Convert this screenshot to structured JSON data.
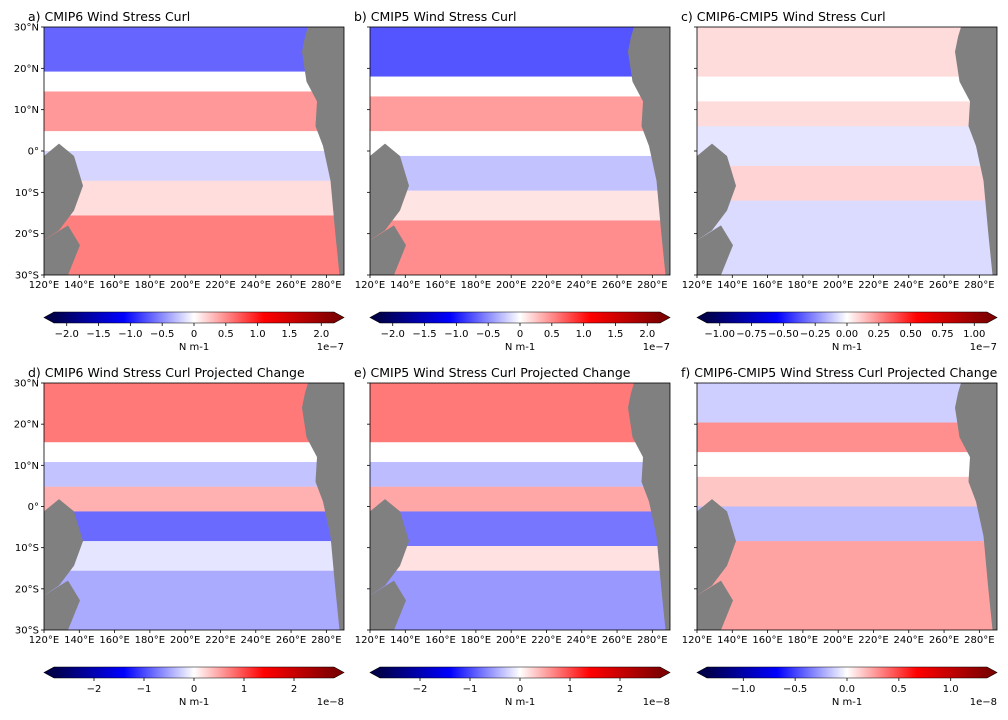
{
  "chart_data": [
    {
      "type": "heatmap",
      "title": "a) CMIP6 Wind Stress Curl",
      "x_ticks": [
        "120°E",
        "140°E",
        "160°E",
        "180°E",
        "200°E",
        "220°E",
        "240°E",
        "260°E",
        "280°E"
      ],
      "y_ticks": [
        "30°N",
        "20°N",
        "10°N",
        "0°",
        "10°S",
        "20°S",
        "30°S"
      ],
      "colorbar": {
        "ticks": [
          "−2.0",
          "−1.5",
          "−1.0",
          "−0.5",
          "0",
          "0.5",
          "1.0",
          "1.5",
          "2.0"
        ],
        "tick_values": [
          -2,
          -1.5,
          -1,
          -0.5,
          0,
          0.5,
          1,
          1.5,
          2
        ],
        "vmin": -2.2,
        "vmax": 2.2,
        "label": "N m-1",
        "scale": "1e−7"
      }
    },
    {
      "type": "heatmap",
      "title": "b) CMIP5 Wind Stress Curl",
      "x_ticks": [
        "120°E",
        "140°E",
        "160°E",
        "180°E",
        "200°E",
        "220°E",
        "240°E",
        "260°E",
        "280°E"
      ],
      "y_ticks": [],
      "colorbar": {
        "ticks": [
          "−2.0",
          "−1.5",
          "−1.0",
          "−0.5",
          "0",
          "0.5",
          "1.0",
          "1.5",
          "2.0"
        ],
        "tick_values": [
          -2,
          -1.5,
          -1,
          -0.5,
          0,
          0.5,
          1,
          1.5,
          2
        ],
        "vmin": -2.2,
        "vmax": 2.2,
        "label": "N m-1",
        "scale": "1e−7"
      }
    },
    {
      "type": "heatmap",
      "title": "c) CMIP6-CMIP5 Wind Stress Curl",
      "x_ticks": [
        "120°E",
        "140°E",
        "160°E",
        "180°E",
        "200°E",
        "220°E",
        "240°E",
        "260°E",
        "280°E"
      ],
      "y_ticks": [],
      "colorbar": {
        "ticks": [
          "−1.00",
          "−0.75",
          "−0.50",
          "−0.25",
          "0.00",
          "0.25",
          "0.50",
          "0.75",
          "1.00"
        ],
        "tick_values": [
          -1,
          -0.75,
          -0.5,
          -0.25,
          0,
          0.25,
          0.5,
          0.75,
          1
        ],
        "vmin": -1.1,
        "vmax": 1.1,
        "label": "N m-1",
        "scale": "1e−7"
      }
    },
    {
      "type": "heatmap",
      "title": "d) CMIP6 Wind Stress Curl Projected Change",
      "x_ticks": [
        "120°E",
        "140°E",
        "160°E",
        "180°E",
        "200°E",
        "220°E",
        "240°E",
        "260°E",
        "280°E"
      ],
      "y_ticks": [
        "30°N",
        "20°N",
        "10°N",
        "0°",
        "10°S",
        "20°S",
        "30°S"
      ],
      "colorbar": {
        "ticks": [
          "−2",
          "−1",
          "0",
          "1",
          "2"
        ],
        "tick_values": [
          -2,
          -1,
          0,
          1,
          2
        ],
        "vmin": -2.8,
        "vmax": 2.8,
        "label": "N m-1",
        "scale": "1e−8"
      }
    },
    {
      "type": "heatmap",
      "title": "e) CMIP5 Wind Stress Curl Projected Change",
      "x_ticks": [
        "120°E",
        "140°E",
        "160°E",
        "180°E",
        "200°E",
        "220°E",
        "240°E",
        "260°E",
        "280°E"
      ],
      "y_ticks": [],
      "colorbar": {
        "ticks": [
          "−2",
          "−1",
          "0",
          "1",
          "2"
        ],
        "tick_values": [
          -2,
          -1,
          0,
          1,
          2
        ],
        "vmin": -2.8,
        "vmax": 2.8,
        "label": "N m-1",
        "scale": "1e−8"
      }
    },
    {
      "type": "heatmap",
      "title": "f) CMIP6-CMIP5 Wind Stress Curl Projected Change",
      "x_ticks": [
        "120°E",
        "140°E",
        "160°E",
        "180°E",
        "200°E",
        "220°E",
        "240°E",
        "260°E",
        "280°E"
      ],
      "y_ticks": [],
      "colorbar": {
        "ticks": [
          "−1.0",
          "−0.5",
          "0.0",
          "0.5",
          "1.0"
        ],
        "tick_values": [
          -1,
          -0.5,
          0,
          0.5,
          1
        ],
        "vmin": -1.35,
        "vmax": 1.35,
        "label": "N m-1",
        "scale": "1e−8"
      }
    }
  ],
  "colors": {
    "land": "#808080",
    "pos": "#ff0000",
    "neg": "#0000ff",
    "zero": "#ffffff"
  }
}
